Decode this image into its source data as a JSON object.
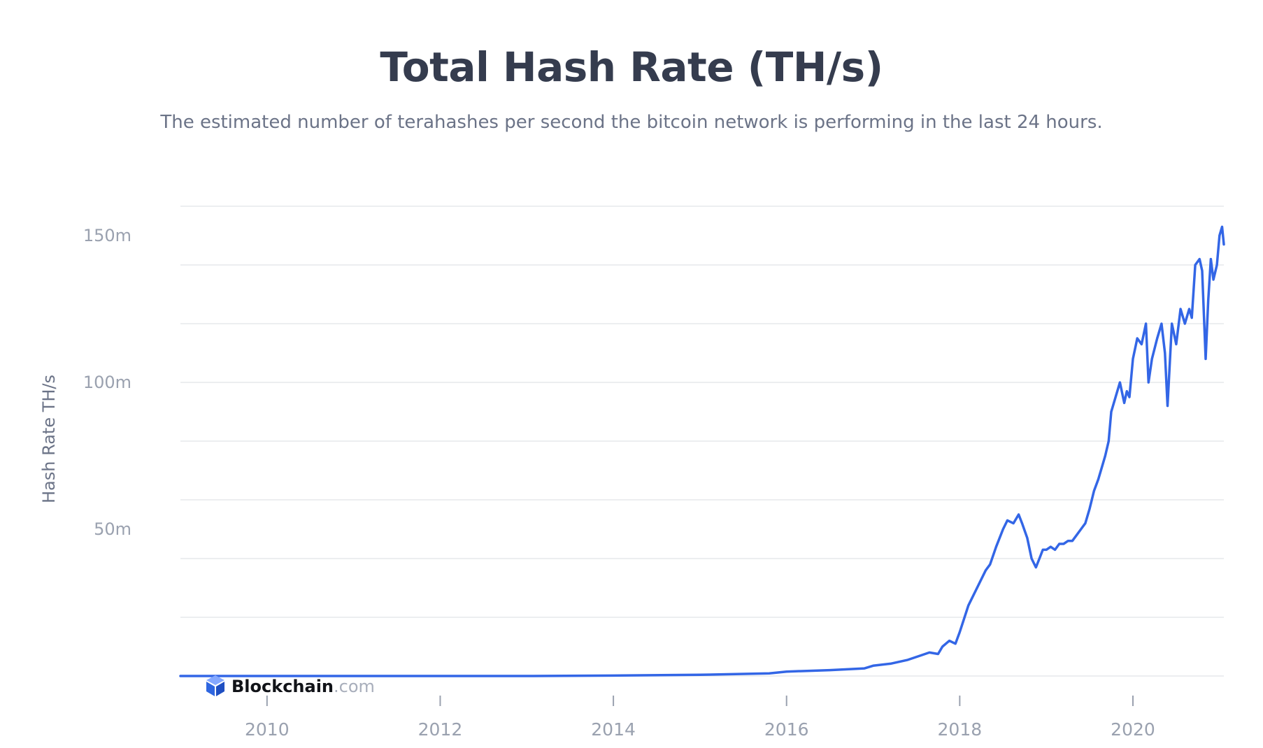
{
  "chart_data": {
    "type": "line",
    "title": "Total Hash Rate (TH/s)",
    "subtitle": "The estimated number of terahashes per second the bitcoin network is performing in the last 24 hours.",
    "ylabel": "Hash Rate TH/s",
    "xlabel": "",
    "xlim": [
      2009.0,
      2021.05
    ],
    "ylim": [
      0,
      160000000
    ],
    "x_ticks": [
      2010,
      2012,
      2014,
      2016,
      2018,
      2020
    ],
    "x_tick_labels": [
      "2010",
      "2012",
      "2014",
      "2016",
      "2018",
      "2020"
    ],
    "y_ticks": [
      50000000,
      100000000,
      150000000
    ],
    "y_tick_labels": [
      "50m",
      "100m",
      "150m"
    ],
    "grid": true,
    "legend": "none",
    "series": [
      {
        "color": "#3366e6",
        "x": [
          2009.0,
          2010.0,
          2011.0,
          2012.0,
          2013.0,
          2014.0,
          2015.0,
          2015.8,
          2016.0,
          2016.5,
          2016.9,
          2017.0,
          2017.2,
          2017.4,
          2017.55,
          2017.65,
          2017.75,
          2017.8,
          2017.88,
          2017.95,
          2018.0,
          2018.1,
          2018.2,
          2018.3,
          2018.35,
          2018.42,
          2018.5,
          2018.55,
          2018.62,
          2018.68,
          2018.72,
          2018.78,
          2018.83,
          2018.88,
          2018.92,
          2018.96,
          2019.0,
          2019.05,
          2019.1,
          2019.15,
          2019.2,
          2019.25,
          2019.3,
          2019.35,
          2019.4,
          2019.45,
          2019.5,
          2019.55,
          2019.6,
          2019.65,
          2019.68,
          2019.72,
          2019.75,
          2019.8,
          2019.85,
          2019.9,
          2019.93,
          2019.96,
          2020.0,
          2020.05,
          2020.1,
          2020.15,
          2020.18,
          2020.22,
          2020.28,
          2020.33,
          2020.37,
          2020.4,
          2020.45,
          2020.5,
          2020.55,
          2020.6,
          2020.65,
          2020.68,
          2020.72,
          2020.77,
          2020.8,
          2020.84,
          2020.87,
          2020.9,
          2020.93,
          2020.97,
          2021.0,
          2021.03,
          2021.05
        ],
        "y": [
          0,
          0,
          0,
          0,
          10000,
          150000,
          400000,
          900000,
          1500000,
          2000000,
          2600000,
          3500000,
          4200000,
          5500000,
          7000000,
          8000000,
          7500000,
          10000000,
          12000000,
          11000000,
          15000000,
          24000000,
          30000000,
          36000000,
          38000000,
          44000000,
          50000000,
          53000000,
          52000000,
          55000000,
          52000000,
          47000000,
          40000000,
          37000000,
          40000000,
          43000000,
          43000000,
          44000000,
          43000000,
          45000000,
          45000000,
          46000000,
          46000000,
          48000000,
          50000000,
          52000000,
          57000000,
          63000000,
          67000000,
          72000000,
          75000000,
          80000000,
          90000000,
          95000000,
          100000000,
          93000000,
          97000000,
          95000000,
          108000000,
          115000000,
          113000000,
          120000000,
          100000000,
          108000000,
          115000000,
          120000000,
          110000000,
          92000000,
          120000000,
          113000000,
          125000000,
          120000000,
          125000000,
          122000000,
          140000000,
          142000000,
          138000000,
          108000000,
          128000000,
          142000000,
          135000000,
          140000000,
          150000000,
          153000000,
          147000000
        ]
      }
    ]
  },
  "brand": {
    "name": "Blockchain",
    "suffix": ".com"
  }
}
